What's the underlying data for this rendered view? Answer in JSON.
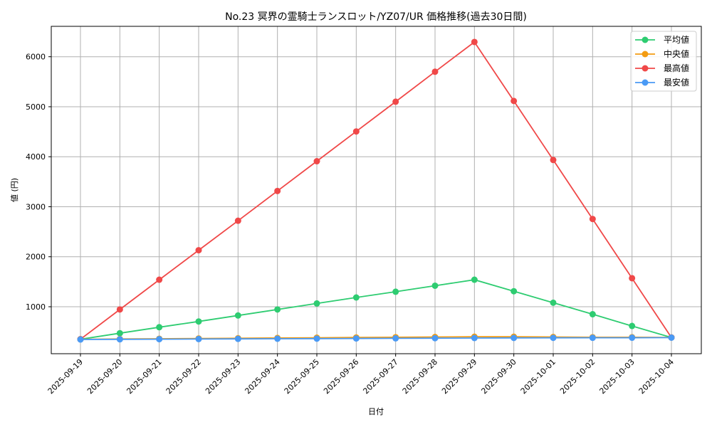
{
  "chart_data": {
    "type": "line",
    "title": "No.23 冥界の霊騎士ランスロット/YZ07/UR 価格推移(過去30日間)",
    "xlabel": "日付",
    "ylabel": "値 (円)",
    "categories": [
      "2025-09-19",
      "2025-09-20",
      "2025-09-21",
      "2025-09-22",
      "2025-09-23",
      "2025-09-24",
      "2025-09-25",
      "2025-09-26",
      "2025-09-27",
      "2025-09-28",
      "2025-09-29",
      "2025-09-30",
      "2025-10-01",
      "2025-10-02",
      "2025-10-03",
      "2025-10-04"
    ],
    "yticks": [
      1000,
      2000,
      3000,
      4000,
      5000,
      6000
    ],
    "ylim": [
      60,
      6590
    ],
    "grid": true,
    "legend_position": "upper right",
    "series": [
      {
        "name": "平均値",
        "color": "#2ecc71",
        "values": [
          350,
          470,
          590,
          705,
          825,
          945,
          1065,
          1185,
          1300,
          1420,
          1540,
          1310,
          1080,
          850,
          615,
          385
        ]
      },
      {
        "name": "中央値",
        "color": "#f39c12",
        "values": [
          350,
          355,
          360,
          365,
          370,
          375,
          380,
          385,
          390,
          395,
          400,
          400,
          395,
          390,
          390,
          385
        ]
      },
      {
        "name": "最高値",
        "color": "#f04848",
        "values": [
          350,
          945,
          1540,
          2130,
          2720,
          3315,
          3910,
          4505,
          5100,
          5700,
          6295,
          5115,
          3935,
          2755,
          1570,
          385
        ]
      },
      {
        "name": "最安値",
        "color": "#4a9af5",
        "values": [
          345,
          348,
          351,
          354,
          357,
          360,
          362,
          365,
          368,
          371,
          374,
          376,
          378,
          379,
          380,
          382
        ]
      }
    ]
  }
}
